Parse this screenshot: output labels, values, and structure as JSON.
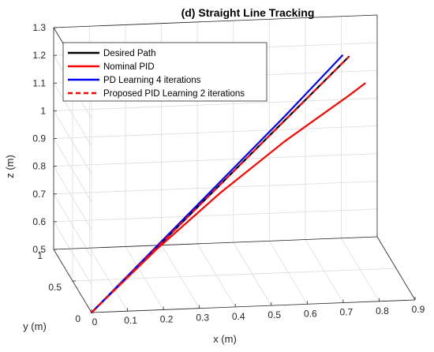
{
  "chart_data": {
    "type": "line",
    "title": "(d) Straight Line Tracking",
    "xlabel": "x (m)",
    "ylabel": "y (m)",
    "zlabel": "z (m)",
    "xlim": [
      0,
      0.9
    ],
    "ylim": [
      0,
      1
    ],
    "zlim": [
      0.5,
      1.3
    ],
    "x_ticks": [
      "0",
      "0.1",
      "0.2",
      "0.3",
      "0.4",
      "0.5",
      "0.6",
      "0.7",
      "0.8",
      "0.9"
    ],
    "y_ticks": [
      "0",
      "0.5",
      "1"
    ],
    "z_ticks": [
      "0.5",
      "0.6",
      "0.7",
      "0.8",
      "0.9",
      "1",
      "1.1",
      "1.2",
      "1.3"
    ],
    "grid": true,
    "legend_position": "top-left",
    "series": [
      {
        "name": "Desired Path",
        "color": "#000000",
        "style": "solid",
        "points": [
          [
            0,
            0,
            0.5
          ],
          [
            0.8,
            0.8,
            1.2
          ]
        ]
      },
      {
        "name": "Nominal PID",
        "color": "#ff0000",
        "style": "solid",
        "points": [
          [
            0,
            0,
            0.5
          ],
          [
            0.2,
            0.2,
            0.67
          ],
          [
            0.4,
            0.4,
            0.82
          ],
          [
            0.6,
            0.6,
            0.95
          ],
          [
            0.8,
            0.8,
            1.06
          ],
          [
            0.85,
            0.85,
            1.09
          ]
        ]
      },
      {
        "name": "PD Learning 4 iterations",
        "color": "#0000ff",
        "style": "solid",
        "points": [
          [
            0,
            0,
            0.5
          ],
          [
            0.2,
            0.2,
            0.68
          ],
          [
            0.4,
            0.4,
            0.86
          ],
          [
            0.6,
            0.6,
            1.04
          ],
          [
            0.78,
            0.78,
            1.21
          ]
        ]
      },
      {
        "name": "Proposed PID Learning 2 iterations",
        "color": "#ff0000",
        "style": "dashed",
        "points": [
          [
            0,
            0,
            0.5
          ],
          [
            0.8,
            0.8,
            1.2
          ]
        ]
      }
    ]
  }
}
